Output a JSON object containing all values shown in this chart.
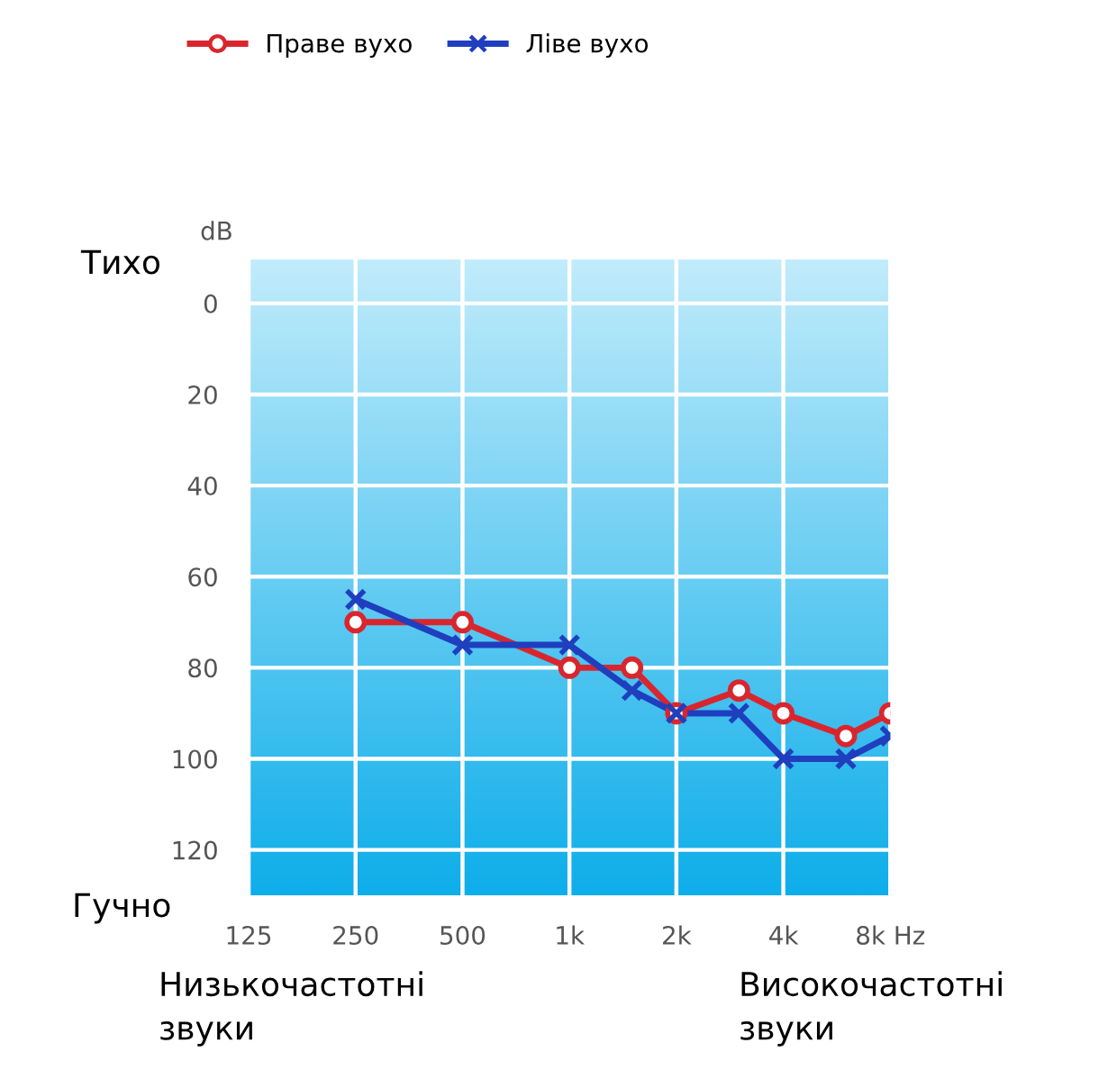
{
  "chart_data": {
    "type": "line",
    "ylabel": "dB",
    "x": [
      250,
      500,
      1000,
      1500,
      2000,
      3000,
      4000,
      6000,
      8000
    ],
    "series": [
      {
        "name": "Праве вухо",
        "color": "#d9262e",
        "marker": "circle",
        "values": [
          70,
          70,
          80,
          80,
          90,
          85,
          90,
          95,
          90
        ]
      },
      {
        "name": "Ліве вухо",
        "color": "#1f3fbf",
        "marker": "cross",
        "x": [
          250,
          500,
          1000,
          1500,
          2000,
          3000,
          4000,
          6000,
          8000
        ],
        "values": [
          65,
          75,
          75,
          85,
          90,
          90,
          100,
          100,
          95
        ]
      }
    ],
    "log": "x",
    "xlim": [
      125,
      8000
    ],
    "xticks": [
      125,
      250,
      500,
      {
        "value": 1000,
        "label": "1k"
      },
      {
        "value": 2000,
        "label": "2k"
      },
      {
        "value": 4000,
        "label": "4k"
      },
      {
        "value": 8000,
        "label": "8k Hz"
      }
    ],
    "ylim": [
      130,
      -10
    ],
    "yticks": [
      0,
      20,
      40,
      60,
      80,
      100,
      120
    ],
    "grid": true,
    "legend": "top",
    "line_style": "solid",
    "annotations": [
      "Тихо",
      "Гучно",
      "Низькочастотні звуки",
      "Високочастотні звуки"
    ]
  }
}
